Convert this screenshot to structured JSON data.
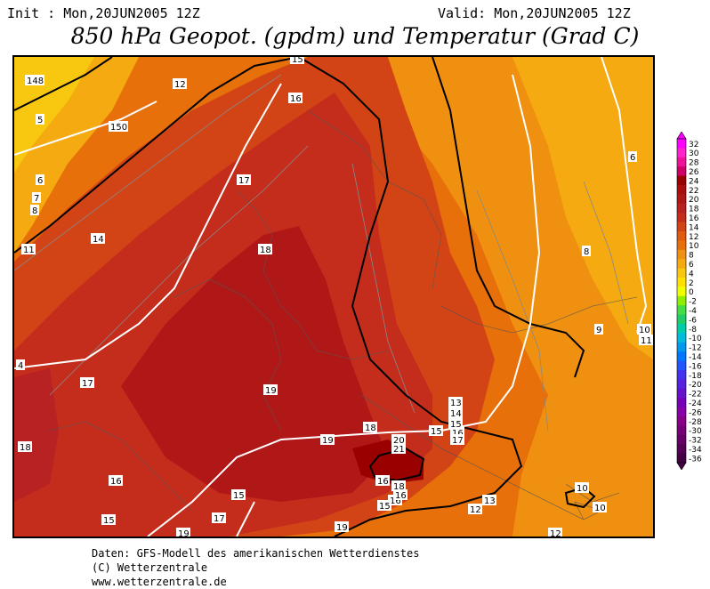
{
  "header": {
    "init": "Init : Mon,20JUN2005 12Z",
    "valid": "Valid: Mon,20JUN2005 12Z",
    "title": "850 hPa Geopot. (gpdm) und Temperatur (Grad C)"
  },
  "legend": {
    "labels": [
      "32",
      "30",
      "28",
      "26",
      "24",
      "22",
      "20",
      "18",
      "16",
      "14",
      "12",
      "10",
      "8",
      "6",
      "4",
      "2",
      "0",
      "-2",
      "-4",
      "-6",
      "-8",
      "-10",
      "-12",
      "-14",
      "-16",
      "-18",
      "-20",
      "-22",
      "-24",
      "-26",
      "-28",
      "-30",
      "-32",
      "-34",
      "-36"
    ],
    "colors": [
      "#ff00ff",
      "#ff22cc",
      "#ee1199",
      "#cc0066",
      "#990000",
      "#aa0f0f",
      "#b01818",
      "#b82222",
      "#c42d1c",
      "#d24416",
      "#e05a10",
      "#e8700a",
      "#f09010",
      "#f4aa10",
      "#f8c810",
      "#ffe000",
      "#f0ff00",
      "#90ee00",
      "#44dd44",
      "#22cc66",
      "#00ccaa",
      "#00bbdd",
      "#0099ee",
      "#0077ff",
      "#2255ff",
      "#4433ee",
      "#5522dd",
      "#6611cc",
      "#7700bb",
      "#8800aa",
      "#880088",
      "#770077",
      "#660066",
      "#550055",
      "#440044"
    ]
  },
  "map_labels": {
    "temperature": [
      "148",
      "12",
      "5",
      "150",
      "6",
      "7",
      "8",
      "11",
      "14",
      "17",
      "16",
      "18",
      "15",
      "6",
      "8",
      "9",
      "10",
      "11",
      "4",
      "17",
      "19",
      "18",
      "19",
      "18",
      "20",
      "21",
      "13",
      "14",
      "15",
      "15",
      "16",
      "17",
      "16",
      "19",
      "16",
      "15",
      "17",
      "19",
      "16",
      "15",
      "13",
      "12",
      "10",
      "10",
      "12",
      "16",
      "18",
      "15"
    ],
    "geopotential": []
  },
  "footer": {
    "line1": "Daten: GFS-Modell des amerikanischen Wetterdienstes",
    "line2": "(C) Wetterzentrale",
    "line3": "www.wetterzentrale.de"
  }
}
